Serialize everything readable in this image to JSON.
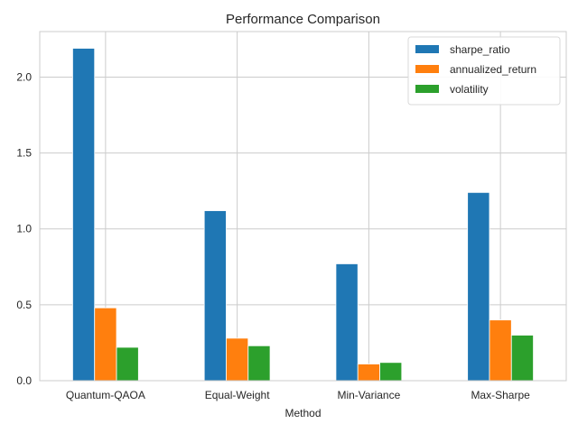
{
  "chart_data": {
    "type": "bar",
    "title": "Performance Comparison",
    "xlabel": "Method",
    "ylabel": "",
    "categories": [
      "Quantum-QAOA",
      "Equal-Weight",
      "Min-Variance",
      "Max-Sharpe"
    ],
    "series": [
      {
        "name": "sharpe_ratio",
        "color": "#1f77b4",
        "values": [
          2.19,
          1.12,
          0.77,
          1.24
        ]
      },
      {
        "name": "annualized_return",
        "color": "#ff7f0e",
        "values": [
          0.48,
          0.28,
          0.11,
          0.4
        ]
      },
      {
        "name": "volatility",
        "color": "#2ca02c",
        "values": [
          0.22,
          0.23,
          0.12,
          0.3
        ]
      }
    ],
    "ylim": [
      0,
      2.3
    ],
    "yticks": [
      0.0,
      0.5,
      1.0,
      1.5,
      2.0
    ],
    "ytick_labels": [
      "0.0",
      "0.5",
      "1.0",
      "1.5",
      "2.0"
    ],
    "grid": true,
    "legend_position": "top-right"
  }
}
